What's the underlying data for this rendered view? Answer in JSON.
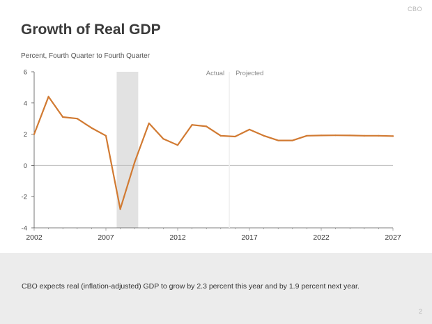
{
  "header": {
    "brand": "CBO",
    "page_number": "2"
  },
  "caption": "CBO expects real (inflation-adjusted) GDP to grow by 2.3 percent this year and by 1.9 percent next year.",
  "chart_data": {
    "type": "line",
    "title": "Growth of Real GDP",
    "subtitle": "Percent, Fourth Quarter to Fourth Quarter",
    "xlabel": "",
    "ylabel": "",
    "xlim": [
      2002,
      2027
    ],
    "ylim": [
      -4,
      6
    ],
    "yticks": [
      -4,
      -2,
      0,
      2,
      4,
      6
    ],
    "xticks": [
      2002,
      2007,
      2012,
      2017,
      2022,
      2027
    ],
    "divider_label_left": "Actual",
    "divider_label_right": "Projected",
    "divider_x": 2015.6,
    "recession_band": [
      2007.75,
      2009.25
    ],
    "series": [
      {
        "name": "Real GDP growth",
        "color": "#d17a32",
        "x": [
          2002,
          2003,
          2004,
          2005,
          2006,
          2007,
          2008,
          2009,
          2010,
          2011,
          2012,
          2013,
          2014,
          2015,
          2016,
          2017,
          2018,
          2019,
          2020,
          2021,
          2022,
          2023,
          2024,
          2025,
          2026,
          2027
        ],
        "values": [
          2.0,
          4.4,
          3.1,
          3.0,
          2.4,
          1.9,
          -2.8,
          0.2,
          2.7,
          1.7,
          1.3,
          2.6,
          2.5,
          1.9,
          1.85,
          2.3,
          1.9,
          1.6,
          1.6,
          1.9,
          1.92,
          1.93,
          1.92,
          1.9,
          1.9,
          1.88
        ]
      }
    ]
  }
}
